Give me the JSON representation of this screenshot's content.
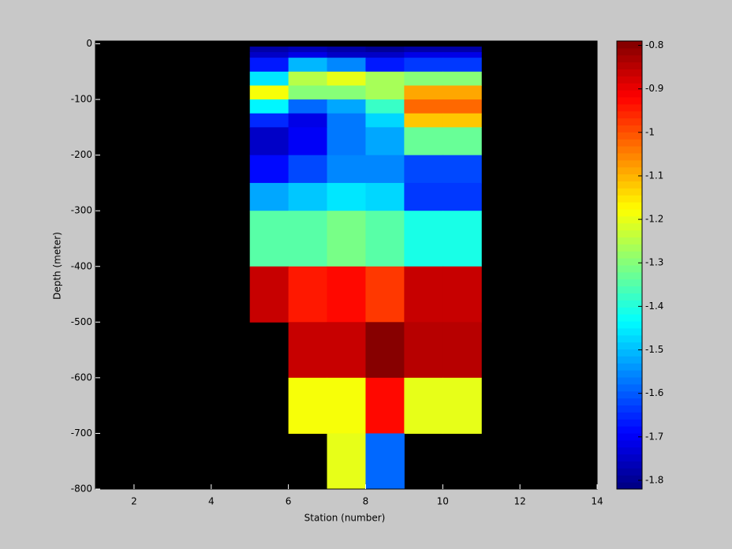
{
  "chart_data": {
    "type": "heatmap",
    "xlabel": "Station (number)",
    "ylabel": "Depth (meter)",
    "x_edges": [
      5,
      6,
      7,
      8,
      9,
      10,
      11
    ],
    "y_edges": [
      -5,
      -15,
      -25,
      -50,
      -75,
      -100,
      -125,
      -150,
      -200,
      -250,
      -300,
      -400,
      -500,
      -600,
      -700,
      -800
    ],
    "values": [
      [
        -1.78,
        -1.76,
        -1.78,
        -1.8,
        -1.78,
        -1.78
      ],
      [
        -1.74,
        -1.72,
        -1.74,
        -1.74,
        -1.72,
        -1.72
      ],
      [
        -1.66,
        -1.5,
        -1.55,
        -1.66,
        -1.63,
        -1.63
      ],
      [
        -1.45,
        -1.25,
        -1.2,
        -1.27,
        -1.3,
        -1.3
      ],
      [
        -1.18,
        -1.3,
        -1.3,
        -1.26,
        -1.08,
        -1.08
      ],
      [
        -1.44,
        -1.58,
        -1.52,
        -1.38,
        -1.03,
        -1.03
      ],
      [
        -1.65,
        -1.72,
        -1.57,
        -1.48,
        -1.12,
        -1.12
      ],
      [
        -1.74,
        -1.7,
        -1.57,
        -1.53,
        -1.33,
        -1.33
      ],
      [
        -1.68,
        -1.62,
        -1.55,
        -1.55,
        -1.62,
        -1.62
      ],
      [
        -1.53,
        -1.49,
        -1.45,
        -1.47,
        -1.64,
        -1.64
      ],
      [
        -1.34,
        -1.35,
        -1.32,
        -1.35,
        -1.41,
        -1.41
      ],
      [
        -0.86,
        -0.94,
        -0.92,
        -0.97,
        -0.86,
        -0.86
      ],
      [
        null,
        -0.86,
        -0.86,
        -0.8,
        -0.84,
        -0.84
      ],
      [
        null,
        -1.18,
        -1.18,
        -0.92,
        -1.2,
        -1.2
      ],
      [
        null,
        null,
        -1.2,
        -1.58,
        null,
        null
      ]
    ],
    "xlim": [
      1,
      14
    ],
    "xticks": [
      2,
      4,
      6,
      8,
      10,
      12,
      14
    ],
    "ylim": [
      -800,
      5
    ],
    "yticks": [
      0,
      -100,
      -200,
      -300,
      -400,
      -500,
      -600,
      -700,
      -800
    ],
    "clim": [
      -1.82,
      -0.79
    ],
    "cticks": [
      -0.8,
      -0.9,
      -1,
      -1.1,
      -1.2,
      -1.3,
      -1.4,
      -1.5,
      -1.6,
      -1.7,
      -1.8
    ],
    "colormap": "jet",
    "background": "#000000"
  }
}
